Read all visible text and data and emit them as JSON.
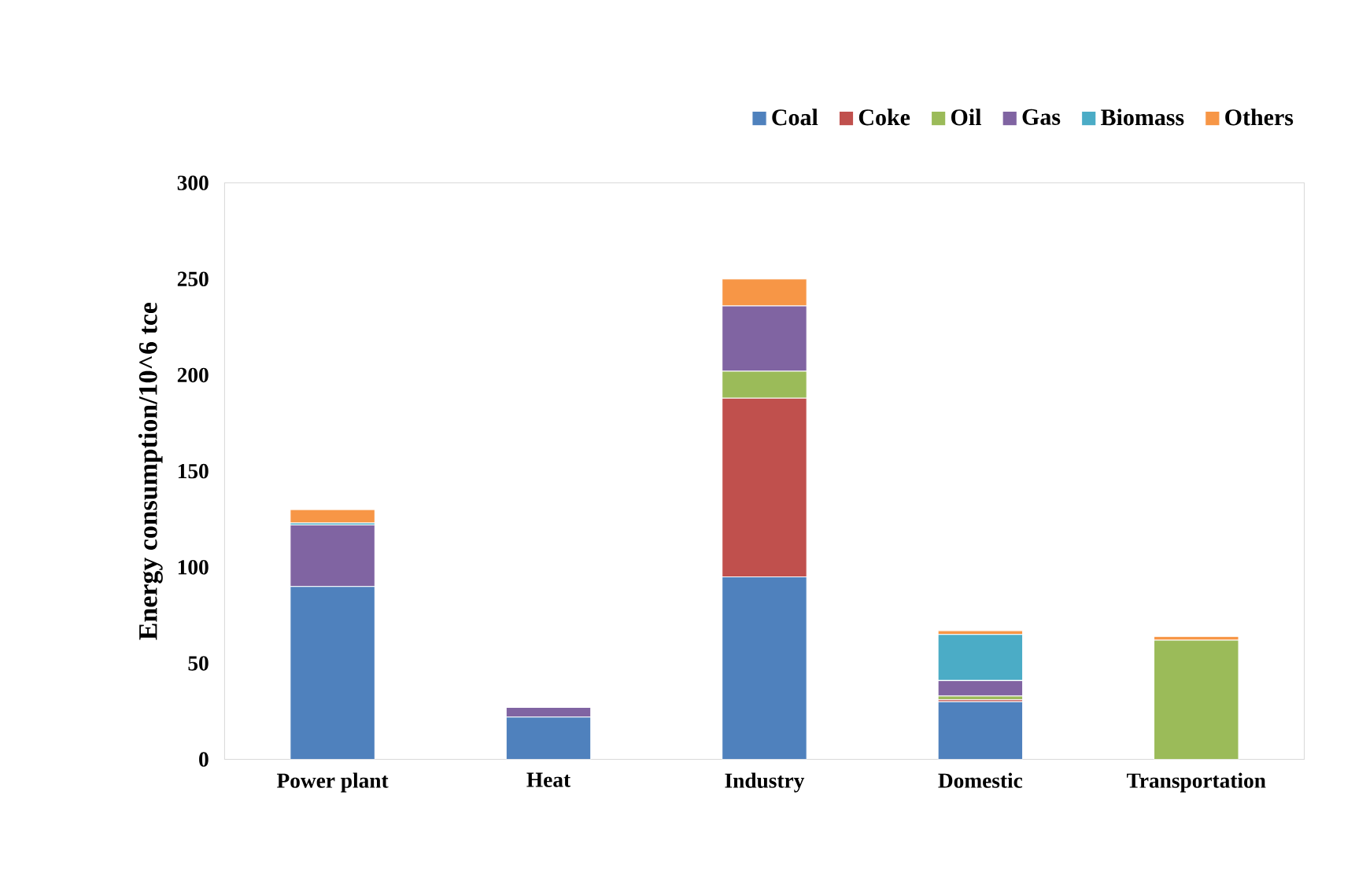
{
  "chart_data": {
    "type": "bar",
    "stacked": true,
    "ylabel": "Energy consumption/10^6 tce",
    "categories": [
      "Power plant",
      "Heat",
      "Industry",
      "Domestic",
      "Transportation"
    ],
    "series": [
      {
        "name": "Coal",
        "color": "#4f81bd",
        "values": [
          90,
          22,
          95,
          30,
          0
        ]
      },
      {
        "name": "Coke",
        "color": "#c0504d",
        "values": [
          0,
          0,
          93,
          1,
          0
        ]
      },
      {
        "name": "Oil",
        "color": "#9bbb59",
        "values": [
          0,
          0,
          14,
          2,
          62
        ]
      },
      {
        "name": "Gas",
        "color": "#8064a2",
        "values": [
          32,
          5,
          34,
          8,
          0
        ]
      },
      {
        "name": "Biomass",
        "color": "#4bacc6",
        "values": [
          1,
          0,
          0,
          24,
          0
        ]
      },
      {
        "name": "Others",
        "color": "#f79646",
        "values": [
          7,
          0,
          14,
          2,
          2
        ]
      }
    ],
    "ylim": [
      0,
      300
    ],
    "yticks": [
      0,
      50,
      100,
      150,
      200,
      250,
      300
    ],
    "grid": false,
    "legend": "top right"
  }
}
